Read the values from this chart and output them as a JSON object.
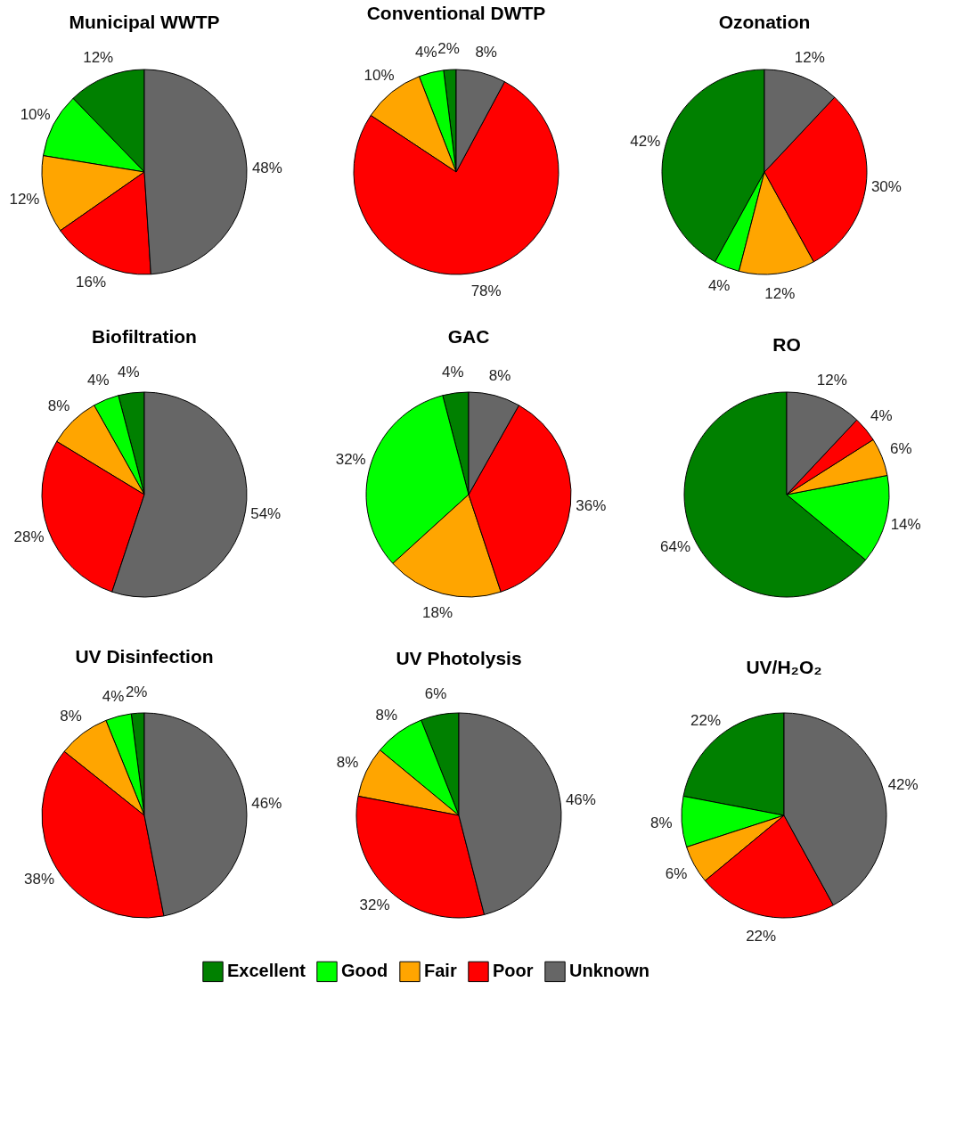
{
  "chart_data": [
    {
      "type": "pie",
      "title": "Municipal WWTP",
      "categories": [
        "Excellent",
        "Good",
        "Fair",
        "Poor",
        "Unknown"
      ],
      "values": [
        12,
        10,
        12,
        16,
        48
      ],
      "value_labels": [
        "12%",
        "10%",
        "12%",
        "16%",
        "48%"
      ],
      "colors": [
        "#008000",
        "#00ff00",
        "#ffa500",
        "#ff0000",
        "#666666"
      ],
      "legend": "bottom"
    },
    {
      "type": "pie",
      "title": "Conventional DWTP",
      "categories": [
        null,
        null,
        null,
        null,
        null
      ],
      "values": [
        2,
        4,
        10,
        78,
        8
      ],
      "value_labels": [
        "2%",
        "4%",
        "10%",
        "78%",
        "8%"
      ],
      "colors": [
        "#008000",
        "#00ff00",
        "#ffa500",
        "#ff0000",
        "#666666"
      ]
    },
    {
      "type": "pie",
      "title": "Ozonation",
      "categories": [
        null,
        null,
        null,
        null,
        null
      ],
      "values": [
        42,
        4,
        12,
        30,
        12
      ],
      "value_labels": [
        "42%",
        "4%",
        "12%",
        "30%",
        "12%"
      ],
      "colors": [
        "#008000",
        "#00ff00",
        "#ffa500",
        "#ff0000",
        "#666666"
      ]
    },
    {
      "type": "pie",
      "title": "Biofiltration",
      "categories": [
        null,
        null,
        null,
        null,
        null
      ],
      "values": [
        4,
        4,
        8,
        28,
        54
      ],
      "value_labels": [
        "4%",
        "4%",
        "8%",
        "28%",
        "54%"
      ],
      "colors": [
        "#008000",
        "#00ff00",
        "#ffa500",
        "#ff0000",
        "#666666"
      ]
    },
    {
      "type": "pie",
      "title": "GAC",
      "categories": [
        null,
        null,
        null,
        null,
        null
      ],
      "values": [
        4,
        32,
        18,
        36,
        8
      ],
      "value_labels": [
        "4%",
        "32%",
        "18%",
        "36%",
        "8%"
      ],
      "colors": [
        "#008000",
        "#00ff00",
        "#ffa500",
        "#ff0000",
        "#666666"
      ]
    },
    {
      "type": "pie",
      "title": "RO",
      "categories": [
        null,
        null,
        null,
        null,
        null
      ],
      "values": [
        64,
        14,
        6,
        4,
        12
      ],
      "value_labels": [
        "64%",
        "14%",
        "6%",
        "4%",
        "12%"
      ],
      "colors": [
        "#008000",
        "#00ff00",
        "#ffa500",
        "#ff0000",
        "#666666"
      ]
    },
    {
      "type": "pie",
      "title": "UV Disinfection",
      "categories": [
        null,
        null,
        null,
        null,
        null
      ],
      "values": [
        2,
        4,
        8,
        38,
        46
      ],
      "value_labels": [
        "2%",
        "4%",
        "8%",
        "38%",
        "46%"
      ],
      "colors": [
        "#008000",
        "#00ff00",
        "#ffa500",
        "#ff0000",
        "#666666"
      ]
    },
    {
      "type": "pie",
      "title": "UV Photolysis",
      "categories": [
        null,
        null,
        null,
        null,
        null
      ],
      "values": [
        6,
        8,
        8,
        32,
        46
      ],
      "value_labels": [
        "6%",
        "8%",
        "8%",
        "32%",
        "46%"
      ],
      "colors": [
        "#008000",
        "#00ff00",
        "#ffa500",
        "#ff0000",
        "#666666"
      ]
    },
    {
      "type": "pie",
      "title": "UV/H₂O₂",
      "categories": [
        null,
        null,
        null,
        null,
        null
      ],
      "values": [
        22,
        8,
        6,
        22,
        42
      ],
      "value_labels": [
        "22%",
        "8%",
        "6%",
        "22%",
        "42%"
      ],
      "colors": [
        "#008000",
        "#00ff00",
        "#ffa500",
        "#ff0000",
        "#666666"
      ]
    }
  ]
}
